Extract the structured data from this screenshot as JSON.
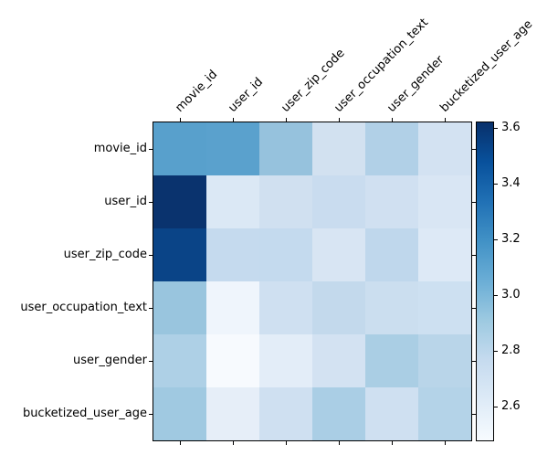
{
  "chart_data": {
    "type": "heatmap",
    "colormap": "Blues",
    "grid": false,
    "legend_position": "right",
    "vmin": 2.48,
    "vmax": 3.62,
    "columns": [
      "movie_id",
      "user_id",
      "user_zip_code",
      "user_occupation_text",
      "user_gender",
      "bucketized_user_age"
    ],
    "rows": [
      {
        "label": "movie_id",
        "values": [
          3.12,
          3.11,
          2.93,
          2.69,
          2.84,
          2.68
        ],
        "colors": [
          "#58a0cc",
          "#5aa1cd",
          "#96c2dd",
          "#d2e1f0",
          "#b1d0e7",
          "#d3e2f2"
        ]
      },
      {
        "label": "user_id",
        "values": [
          3.61,
          2.63,
          2.7,
          2.75,
          2.7,
          2.65
        ],
        "colors": [
          "#0a336e",
          "#dbe8f5",
          "#d0e0f0",
          "#c9dcef",
          "#d0e0f1",
          "#d9e6f4"
        ]
      },
      {
        "label": "user_zip_code",
        "values": [
          3.52,
          2.77,
          2.77,
          2.66,
          2.79,
          2.63
        ],
        "colors": [
          "#0a4487",
          "#c5daee",
          "#c4daee",
          "#d8e5f3",
          "#bfd7ec",
          "#dde9f6"
        ]
      },
      {
        "label": "user_occupation_text",
        "values": [
          2.92,
          2.53,
          2.71,
          2.78,
          2.74,
          2.72
        ],
        "colors": [
          "#99c5de",
          "#eff5fc",
          "#cfe0f1",
          "#c3d9ec",
          "#cbdeef",
          "#cde0f1"
        ]
      },
      {
        "label": "user_gender",
        "values": [
          2.85,
          2.49,
          2.59,
          2.69,
          2.86,
          2.81
        ],
        "colors": [
          "#aed0e6",
          "#f7fafe",
          "#e3edf8",
          "#d3e2f2",
          "#aacee4",
          "#b9d5e9"
        ]
      },
      {
        "label": "bucketized_user_age",
        "values": [
          2.9,
          2.58,
          2.71,
          2.86,
          2.71,
          2.83
        ],
        "colors": [
          "#a0c9e1",
          "#e6eef8",
          "#cfe0f1",
          "#aacee5",
          "#cfe0f1",
          "#b4d3e8"
        ]
      }
    ],
    "colorbar": {
      "tick_labels": [
        "3.6",
        "3.4",
        "3.2",
        "3.0",
        "2.8",
        "2.6"
      ],
      "tick_values": [
        3.6,
        3.4,
        3.2,
        3.0,
        2.8,
        2.6
      ],
      "gradient_bottom_to_top": [
        "#f7fbff",
        "#deebf7",
        "#c6dbef",
        "#9ecae1",
        "#6baed6",
        "#4292c6",
        "#2171b5",
        "#08519c",
        "#08306b"
      ]
    }
  }
}
